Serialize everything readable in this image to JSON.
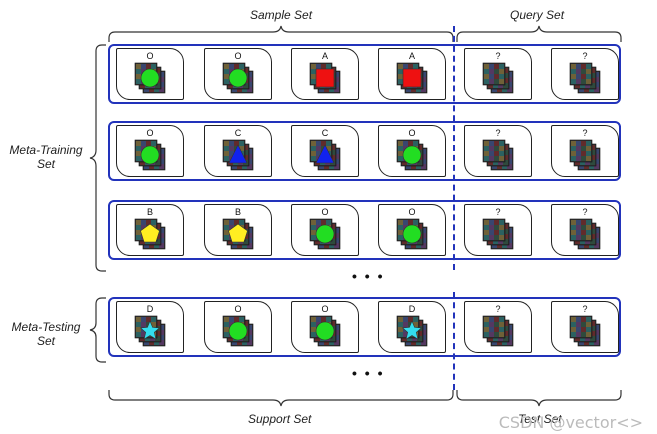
{
  "headers": {
    "sample_set": "Sample Set",
    "query_set": "Query Set",
    "support_set": "Support Set",
    "test_set": "Test Set",
    "meta_training_line1": "Meta-Training",
    "meta_training_line2": "Set",
    "meta_testing_line1": "Meta-Testing",
    "meta_testing_line2": "Set",
    "ellipsis": "• • •"
  },
  "rows": [
    {
      "group": "meta-training",
      "support": [
        {
          "label": "O",
          "shape": "circle",
          "color": "#22dd22"
        },
        {
          "label": "O",
          "shape": "circle",
          "color": "#22dd22"
        },
        {
          "label": "A",
          "shape": "square",
          "color": "#ee1111"
        },
        {
          "label": "A",
          "shape": "square",
          "color": "#ee1111"
        }
      ],
      "query": [
        {
          "label": "?"
        },
        {
          "label": "?"
        }
      ]
    },
    {
      "group": "meta-training",
      "support": [
        {
          "label": "O",
          "shape": "circle",
          "color": "#22dd22"
        },
        {
          "label": "C",
          "shape": "triangle",
          "color": "#1122ee"
        },
        {
          "label": "C",
          "shape": "triangle",
          "color": "#1122ee"
        },
        {
          "label": "O",
          "shape": "circle",
          "color": "#22dd22"
        }
      ],
      "query": [
        {
          "label": "?"
        },
        {
          "label": "?"
        }
      ]
    },
    {
      "group": "meta-training",
      "support": [
        {
          "label": "B",
          "shape": "pentagon",
          "color": "#ffee22"
        },
        {
          "label": "B",
          "shape": "pentagon",
          "color": "#ffee22"
        },
        {
          "label": "O",
          "shape": "circle",
          "color": "#22dd22"
        },
        {
          "label": "O",
          "shape": "circle",
          "color": "#22dd22"
        }
      ],
      "query": [
        {
          "label": "?"
        },
        {
          "label": "?"
        }
      ]
    },
    {
      "group": "meta-testing",
      "support": [
        {
          "label": "D",
          "shape": "star",
          "color": "#33ddee"
        },
        {
          "label": "O",
          "shape": "circle",
          "color": "#22dd22"
        },
        {
          "label": "O",
          "shape": "circle",
          "color": "#22dd22"
        },
        {
          "label": "D",
          "shape": "star",
          "color": "#33ddee"
        }
      ],
      "query": [
        {
          "label": "?"
        },
        {
          "label": "?"
        }
      ]
    }
  ],
  "watermark": "CSDN @vector<>",
  "colors": {
    "row_border": "#2233bb"
  }
}
